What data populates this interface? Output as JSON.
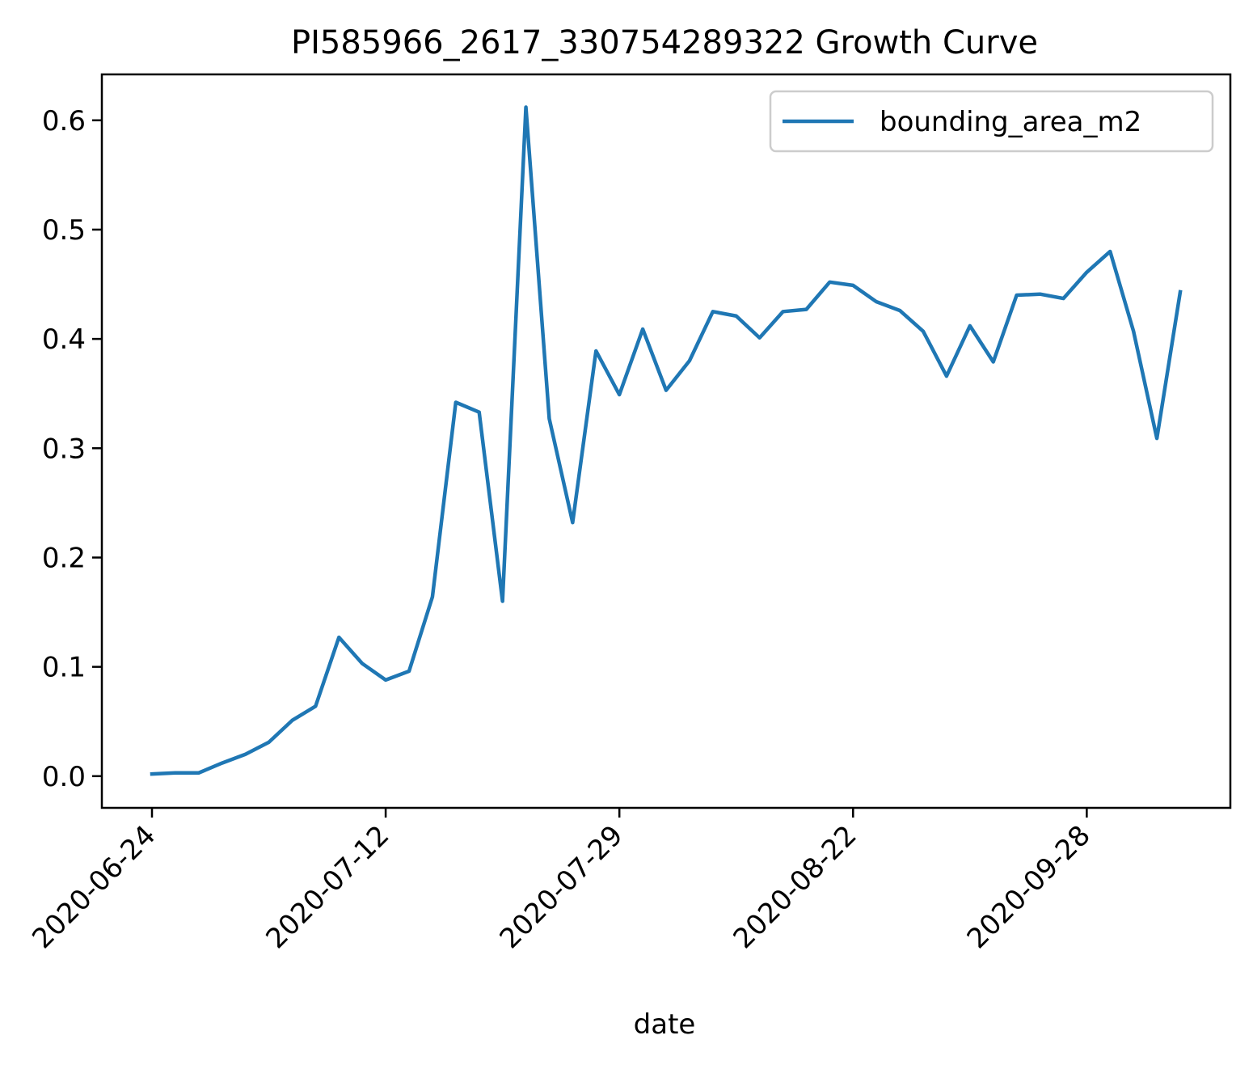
{
  "chart_data": {
    "type": "line",
    "title": "PI585966_2617_330754289322 Growth Curve",
    "xlabel": "date",
    "ylabel": "",
    "x_tick_labels": [
      "2020-06-24",
      "2020-07-12",
      "2020-07-29",
      "2020-08-22",
      "2020-09-28"
    ],
    "y_tick_labels": [
      "0.0",
      "0.1",
      "0.2",
      "0.3",
      "0.4",
      "0.5",
      "0.6"
    ],
    "y_ticks": [
      0.0,
      0.1,
      0.2,
      0.3,
      0.4,
      0.5,
      0.6
    ],
    "ylim": [
      -0.029,
      0.642
    ],
    "grid": false,
    "legend_position": "top-right",
    "series": [
      {
        "name": "bounding_area_m2",
        "color": "#1f77b4",
        "values": [
          0.002,
          0.003,
          0.003,
          0.012,
          0.02,
          0.031,
          0.051,
          0.064,
          0.127,
          0.103,
          0.088,
          0.096,
          0.164,
          0.342,
          0.333,
          0.16,
          0.612,
          0.327,
          0.232,
          0.389,
          0.349,
          0.409,
          0.353,
          0.38,
          0.425,
          0.421,
          0.401,
          0.425,
          0.427,
          0.452,
          0.449,
          0.434,
          0.426,
          0.407,
          0.366,
          0.412,
          0.379,
          0.44,
          0.441,
          0.437,
          0.461,
          0.48,
          0.407,
          0.309,
          0.443
        ]
      }
    ]
  }
}
